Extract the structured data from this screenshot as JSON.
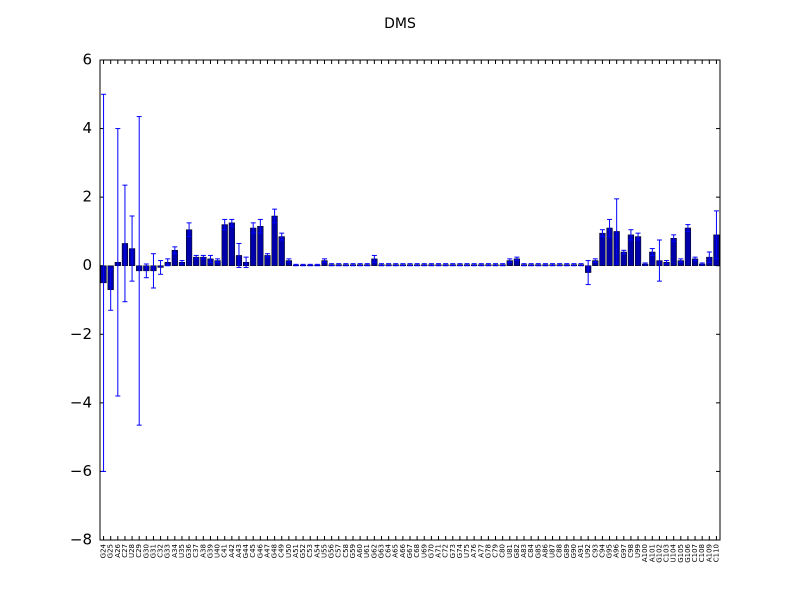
{
  "chart_data": {
    "type": "bar",
    "title": "DMS",
    "categories": [
      "G24",
      "G25",
      "A26",
      "C27",
      "U28",
      "C29",
      "G30",
      "G31",
      "C32",
      "G33",
      "A34",
      "U35",
      "G36",
      "C37",
      "A38",
      "G39",
      "U40",
      "C41",
      "A42",
      "A43",
      "G44",
      "C45",
      "G46",
      "A47",
      "G48",
      "C49",
      "U50",
      "A51",
      "G52",
      "C53",
      "A54",
      "U55",
      "G56",
      "C57",
      "C58",
      "G59",
      "A60",
      "U61",
      "G62",
      "G63",
      "C64",
      "A65",
      "A66",
      "G67",
      "C68",
      "U69",
      "G70",
      "A71",
      "C72",
      "G73",
      "G74",
      "U75",
      "A76",
      "A77",
      "G78",
      "C79",
      "C80",
      "U81",
      "G82",
      "A83",
      "C84",
      "G85",
      "A86",
      "U87",
      "C88",
      "G89",
      "G90",
      "A91",
      "U92",
      "C93",
      "C94",
      "G95",
      "A96",
      "G97",
      "C98",
      "U99",
      "A100",
      "A101",
      "G102",
      "C103",
      "U104",
      "G105",
      "G106",
      "C107",
      "C108",
      "A109",
      "C110"
    ],
    "series": [
      {
        "color": "#0000aa",
        "error_color": "#0000ff",
        "values": [
          -0.5,
          -0.7,
          0.1,
          0.65,
          0.5,
          -0.15,
          -0.15,
          -0.15,
          -0.05,
          0.1,
          0.45,
          0.1,
          1.05,
          0.25,
          0.25,
          0.2,
          0.15,
          1.2,
          1.25,
          0.3,
          0.1,
          1.1,
          1.15,
          0.3,
          1.45,
          0.85,
          0.15,
          0.02,
          0.02,
          0.02,
          0.02,
          0.15,
          0.03,
          0.03,
          0.03,
          0.03,
          0.03,
          0.03,
          0.2,
          0.03,
          0.03,
          0.03,
          0.03,
          0.03,
          0.03,
          0.03,
          0.03,
          0.03,
          0.03,
          0.03,
          0.03,
          0.03,
          0.03,
          0.03,
          0.03,
          0.03,
          0.03,
          0.15,
          0.2,
          0.03,
          0.03,
          0.03,
          0.03,
          0.03,
          0.03,
          0.03,
          0.03,
          0.03,
          -0.2,
          0.15,
          0.95,
          1.1,
          1.0,
          0.4,
          0.9,
          0.85,
          0.05,
          0.4,
          0.15,
          0.1,
          0.8,
          0.15,
          1.1,
          0.2,
          0.05,
          0.25,
          0.9
        ],
        "errors": [
          5.5,
          0.6,
          3.9,
          1.7,
          0.95,
          4.5,
          0.2,
          0.5,
          0.2,
          0.1,
          0.1,
          0.05,
          0.2,
          0.05,
          0.05,
          0.1,
          0.05,
          0.15,
          0.1,
          0.35,
          0.15,
          0.15,
          0.2,
          0.05,
          0.2,
          0.1,
          0.05,
          0.02,
          0.02,
          0.02,
          0.02,
          0.05,
          0.03,
          0.03,
          0.03,
          0.03,
          0.03,
          0.03,
          0.1,
          0.03,
          0.03,
          0.03,
          0.03,
          0.03,
          0.03,
          0.03,
          0.03,
          0.03,
          0.03,
          0.03,
          0.03,
          0.03,
          0.03,
          0.03,
          0.03,
          0.03,
          0.03,
          0.05,
          0.05,
          0.03,
          0.03,
          0.03,
          0.03,
          0.03,
          0.03,
          0.03,
          0.03,
          0.03,
          0.35,
          0.05,
          0.1,
          0.25,
          0.95,
          0.05,
          0.15,
          0.1,
          0.03,
          0.1,
          0.6,
          0.05,
          0.1,
          0.05,
          0.1,
          0.05,
          0.03,
          0.15,
          0.7
        ]
      }
    ],
    "ylim": [
      -8,
      6
    ],
    "yticks": [
      {
        "value": -8,
        "label": "−8"
      },
      {
        "value": -6,
        "label": "−6"
      },
      {
        "value": -4,
        "label": "−4"
      },
      {
        "value": -2,
        "label": "−2"
      },
      0,
      2,
      4,
      6
    ],
    "grid": false
  }
}
